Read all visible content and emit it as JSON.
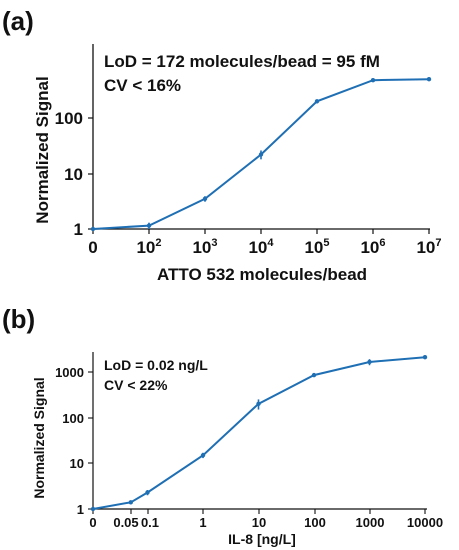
{
  "chart_data": [
    {
      "type": "line",
      "panel_label": "(a)",
      "title": "",
      "xlabel": "ATTO 532 molecules/bead",
      "ylabel": "Normalized Signal",
      "annotations": [
        "LoD = 172 molecules/bead = 95 fM",
        "CV < 16%"
      ],
      "x_scale": "log with zero",
      "y_scale": "log",
      "x_ticks": [
        {
          "label": "0"
        },
        {
          "base": "10",
          "exp": "2"
        },
        {
          "base": "10",
          "exp": "3"
        },
        {
          "base": "10",
          "exp": "4"
        },
        {
          "base": "10",
          "exp": "5"
        },
        {
          "base": "10",
          "exp": "6"
        },
        {
          "base": "10",
          "exp": "7"
        }
      ],
      "y_ticks": [
        "1",
        "10",
        "100"
      ],
      "x": [
        0,
        100,
        1000,
        10000,
        100000,
        1000000,
        10000000
      ],
      "y": [
        1,
        1.15,
        3.5,
        22,
        200,
        480,
        500
      ],
      "y_err": [
        0.03,
        0.15,
        0.4,
        4,
        15,
        20,
        20
      ],
      "color": "#1f6fb4",
      "grid": false
    },
    {
      "type": "line",
      "panel_label": "(b)",
      "title": "",
      "xlabel": "IL-8 [ng/L]",
      "ylabel": "Normalized Signal",
      "annotations": [
        "LoD = 0.02 ng/L",
        "CV < 22%"
      ],
      "x_scale": "log with zero",
      "y_scale": "log",
      "x_ticks": [
        "0",
        "0.05",
        "0.1",
        "1",
        "10",
        "100",
        "1000",
        "10000"
      ],
      "y_ticks": [
        "1",
        "10",
        "100",
        "1000"
      ],
      "x": [
        0,
        0.05,
        0.1,
        1,
        10,
        100,
        1000,
        10000
      ],
      "y": [
        1,
        1.4,
        2.3,
        15,
        200,
        850,
        1650,
        2100
      ],
      "y_err": [
        0.03,
        0.08,
        0.3,
        2,
        50,
        50,
        250,
        80
      ],
      "color": "#1f6fb4",
      "grid": false
    }
  ]
}
